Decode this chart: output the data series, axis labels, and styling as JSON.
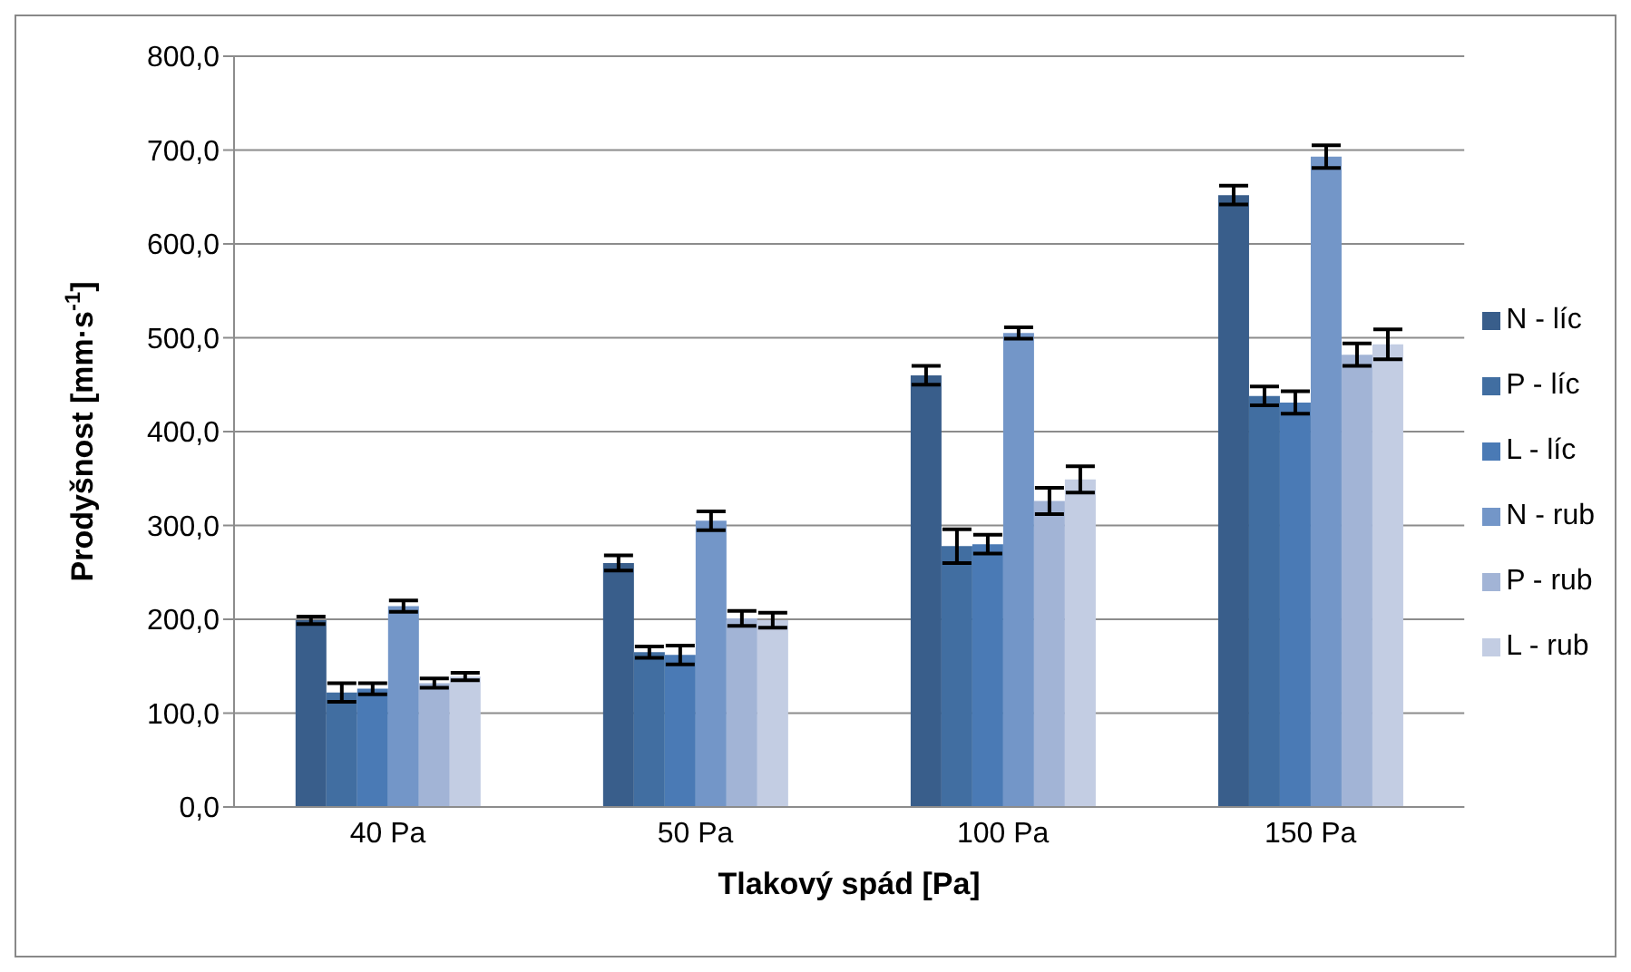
{
  "chart_data": {
    "type": "bar",
    "xlabel": "Tlakový spád [Pa]",
    "ylabel": "Prodyšnost [mm·s$^{-1}$]",
    "categories": [
      "40 Pa",
      "50 Pa",
      "100 Pa",
      "150 Pa"
    ],
    "series": [
      {
        "name": "N - líc",
        "color": "#395e8b",
        "values": [
          199,
          260,
          460,
          652
        ],
        "errors": [
          4,
          8,
          10,
          10
        ]
      },
      {
        "name": "P - líc",
        "color": "#416ea1",
        "values": [
          122,
          165,
          278,
          438
        ],
        "errors": [
          10,
          6,
          18,
          10
        ]
      },
      {
        "name": "L - líc",
        "color": "#4a7ab5",
        "values": [
          126,
          162,
          280,
          431
        ],
        "errors": [
          6,
          10,
          10,
          12
        ]
      },
      {
        "name": "N - rub",
        "color": "#7396c8",
        "values": [
          214,
          305,
          505,
          693
        ],
        "errors": [
          6,
          10,
          6,
          12
        ]
      },
      {
        "name": "P - rub",
        "color": "#a2b4d6",
        "values": [
          132,
          201,
          326,
          482
        ],
        "errors": [
          5,
          8,
          14,
          12
        ]
      },
      {
        "name": "L - rub",
        "color": "#c3cde3",
        "values": [
          139,
          199,
          349,
          493
        ],
        "errors": [
          4,
          8,
          14,
          16
        ]
      }
    ],
    "ylim": [
      0,
      800
    ],
    "yticks": [
      {
        "value": 0,
        "label": "0,0"
      },
      {
        "value": 100,
        "label": "100,0"
      },
      {
        "value": 200,
        "label": "200,0"
      },
      {
        "value": 300,
        "label": "300,0"
      },
      {
        "value": 400,
        "label": "400,0"
      },
      {
        "value": 500,
        "label": "500,0"
      },
      {
        "value": 600,
        "label": "600,0"
      },
      {
        "value": 700,
        "label": "700,0"
      },
      {
        "value": 800,
        "label": "800,0"
      }
    ],
    "grid": "y",
    "legend": "right"
  }
}
